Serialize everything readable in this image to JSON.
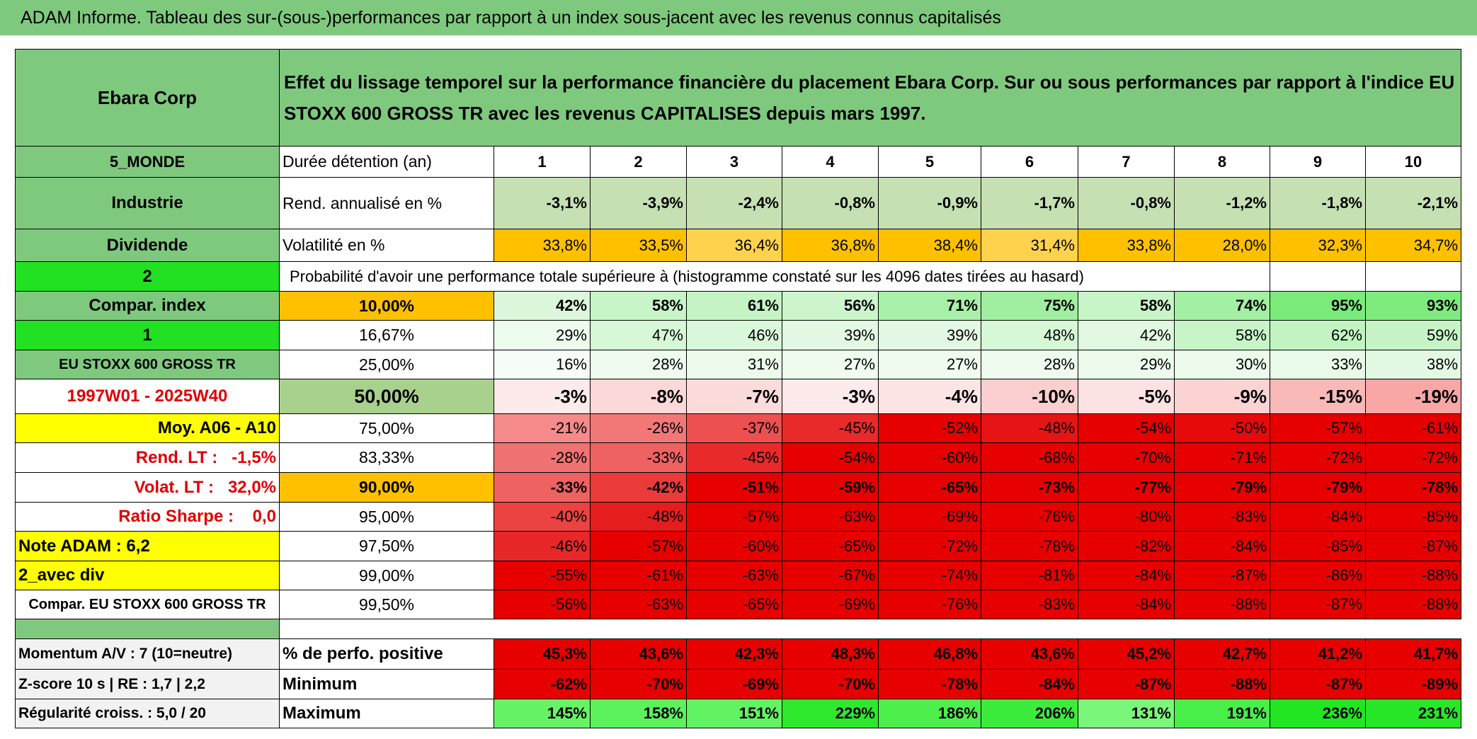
{
  "title": "ADAM Informe. Tableau des sur-(sous-)performances par rapport à un index sous-jacent avec les revenus connus capitalisés",
  "header": {
    "name": "Ebara Corp",
    "description": "Effet du lissage temporel sur la performance financière du placement Ebara Corp. Sur ou sous performances par rapport à l'indice EU STOXX 600 GROSS TR avec les revenus CAPITALISES depuis mars 1997.",
    "bg": "#7fc97f"
  },
  "rows": [
    {
      "label": "5_MONDE",
      "label_bg": "#7fc97f",
      "label_fg": "#000000",
      "key": "Durée détention (an)",
      "key_bg": "#ffffff",
      "cells": [
        "1",
        "2",
        "3",
        "4",
        "5",
        "6",
        "7",
        "8",
        "9",
        "10"
      ],
      "cell_bg": "#ffffff"
    },
    {
      "label": "Industrie",
      "label_bg": "#7fc97f",
      "label_fg": "#000000",
      "key": "Rend. annualisé en %",
      "key_bg": "#ffffff",
      "cells": [
        "-3,1%",
        "-3,9%",
        "-2,4%",
        "-0,8%",
        "-0,9%",
        "-1,7%",
        "-0,8%",
        "-1,2%",
        "-1,8%",
        "-2,1%"
      ],
      "cell_bg": "#c6e0b4"
    },
    {
      "label": "Dividende",
      "label_bg": "#7fc97f",
      "label_fg": "#000000",
      "key": "Volatilité en %",
      "key_bg": "#ffffff",
      "cells": [
        "33,8%",
        "33,5%",
        "36,4%",
        "36,8%",
        "38,4%",
        "31,4%",
        "33,8%",
        "28,0%",
        "32,3%",
        "34,7%"
      ],
      "cell_bg": [
        "#ffc000",
        "#ffc000",
        "#ffd24d",
        "#ffc000",
        "#ffc000",
        "#ffd24d",
        "#ffc000",
        "#ffc000",
        "#ffc000",
        "#ffc000"
      ]
    },
    {
      "label": "2",
      "label_bg": "#22e022",
      "label_fg": "#000000",
      "note": "Probabilité d'avoir une performance totale supérieure à (histogramme constaté sur les 4096 dates tirées au hasard)"
    },
    {
      "label": "Compar. index",
      "label_bg": "#7fc97f",
      "label_fg": "#000000",
      "key": "10,00%",
      "key_bg": "#ffc000",
      "cells": [
        "42%",
        "58%",
        "61%",
        "56%",
        "71%",
        "75%",
        "58%",
        "74%",
        "95%",
        "93%"
      ],
      "cell_bg": [
        "#ddf7dd",
        "#c8f5c8",
        "#c4f4c4",
        "#ccf5cc",
        "#a8f0a8",
        "#a0ee9f",
        "#c8f5c8",
        "#a3efa3",
        "#7aeb7a",
        "#7eeb7e"
      ]
    },
    {
      "label": "1",
      "label_bg": "#22e022",
      "label_fg": "#000000",
      "key": "16,67%",
      "key_bg": "#ffffff",
      "cells": [
        "29%",
        "47%",
        "46%",
        "39%",
        "39%",
        "48%",
        "42%",
        "58%",
        "62%",
        "59%"
      ],
      "cell_bg": [
        "#eefcee",
        "#d7f8d7",
        "#d9f8d9",
        "#e3f9e3",
        "#e3f9e3",
        "#d6f8d6",
        "#e0f9e0",
        "#c8f5c8",
        "#c2f4c2",
        "#c6f4c6"
      ]
    },
    {
      "label": "EU STOXX 600 GROSS TR",
      "label_bg": "#7fc97f",
      "label_fg": "#000000",
      "key": "25,00%",
      "key_bg": "#ffffff",
      "cells": [
        "16%",
        "28%",
        "31%",
        "27%",
        "27%",
        "28%",
        "29%",
        "30%",
        "33%",
        "38%"
      ],
      "cell_bg": [
        "#f6fdf6",
        "#eefbee",
        "#ecfbec",
        "#effcef",
        "#effcef",
        "#eefbee",
        "#edfbed",
        "#ecfbec",
        "#e9fae9",
        "#e4f9e4"
      ]
    },
    {
      "label": "1997W01 - 2025W40",
      "label_bg": "#ffffff",
      "label_fg": "#e00000",
      "key": "50,00%",
      "key_bg": "#a9d18e",
      "cells": [
        "-3%",
        "-8%",
        "-7%",
        "-3%",
        "-4%",
        "-10%",
        "-5%",
        "-9%",
        "-15%",
        "-19%"
      ],
      "cell_bg": [
        "#fdeaea",
        "#fcd8d8",
        "#fcdbdb",
        "#fdeaea",
        "#fde5e5",
        "#fbcfcf",
        "#fce2e2",
        "#fbd3d3",
        "#f9b9b9",
        "#f8a6a6"
      ]
    },
    {
      "label": "Moy. A06 - A10",
      "label_bg": "#ffff00",
      "label_fg": "#000000",
      "key": "75,00%",
      "key_bg": "#ffffff",
      "cells": [
        "-21%",
        "-26%",
        "-37%",
        "-45%",
        "-52%",
        "-48%",
        "-54%",
        "-50%",
        "-57%",
        "-61%"
      ],
      "cell_bg": [
        "#f58a8a",
        "#f27878",
        "#ec5050",
        "#e82a2a",
        "#e60000",
        "#e61414",
        "#e60000",
        "#e60a0a",
        "#e60000",
        "#e60000"
      ]
    },
    {
      "label": "Rend. LT :   -1,5%",
      "label_bg": "#ffffff",
      "label_fg": "#e00000",
      "key": "83,33%",
      "key_bg": "#ffffff",
      "cells": [
        "-28%",
        "-33%",
        "-45%",
        "-54%",
        "-60%",
        "-68%",
        "-70%",
        "-71%",
        "-72%",
        "-72%"
      ],
      "cell_bg": [
        "#f07272",
        "#ee6262",
        "#e82a2a",
        "#e60000",
        "#e60000",
        "#e60000",
        "#e60000",
        "#e60000",
        "#e60000",
        "#e60000"
      ]
    },
    {
      "label": "Volat. LT :   32,0%",
      "label_bg": "#ffffff",
      "label_fg": "#e00000",
      "key": "90,00%",
      "key_bg": "#ffc000",
      "cells": [
        "-33%",
        "-42%",
        "-51%",
        "-59%",
        "-65%",
        "-73%",
        "-77%",
        "-79%",
        "-79%",
        "-78%"
      ],
      "cell_bg": [
        "#ee6262",
        "#ea3a3a",
        "#e60000",
        "#e60000",
        "#e60000",
        "#e60000",
        "#e60000",
        "#e60000",
        "#e60000",
        "#e60000"
      ]
    },
    {
      "label": "Ratio Sharpe :    0,0",
      "label_bg": "#ffffff",
      "label_fg": "#e00000",
      "key": "95,00%",
      "key_bg": "#ffffff",
      "cells": [
        "-40%",
        "-48%",
        "-57%",
        "-63%",
        "-69%",
        "-76%",
        "-80%",
        "-83%",
        "-84%",
        "-85%"
      ],
      "cell_bg": [
        "#eb4242",
        "#e61d1d",
        "#e60000",
        "#e60000",
        "#e60000",
        "#e60000",
        "#e60000",
        "#e60000",
        "#e60000",
        "#e60000"
      ]
    },
    {
      "label": "Note ADAM : 6,2",
      "label_bg": "#ffff00",
      "label_fg": "#000000",
      "key": "97,50%",
      "key_bg": "#ffffff",
      "cells": [
        "-46%",
        "-57%",
        "-60%",
        "-65%",
        "-72%",
        "-78%",
        "-82%",
        "-84%",
        "-85%",
        "-87%"
      ],
      "cell_bg": [
        "#e82828",
        "#e60000",
        "#e60000",
        "#e60000",
        "#e60000",
        "#e60000",
        "#e60000",
        "#e60000",
        "#e60000",
        "#e60000"
      ]
    },
    {
      "label": "2_avec div",
      "label_bg": "#ffff00",
      "label_fg": "#000000",
      "key": "99,00%",
      "key_bg": "#ffffff",
      "cells": [
        "-55%",
        "-61%",
        "-63%",
        "-67%",
        "-74%",
        "-81%",
        "-84%",
        "-87%",
        "-86%",
        "-88%"
      ],
      "cell_bg": "#e60000"
    },
    {
      "label": "Compar. EU STOXX 600 GROSS TR",
      "label_bg": "#ffffff",
      "label_fg": "#000000",
      "key": "99,50%",
      "key_bg": "#ffffff",
      "cells": [
        "-56%",
        "-63%",
        "-65%",
        "-69%",
        "-76%",
        "-83%",
        "-84%",
        "-88%",
        "-87%",
        "-88%"
      ],
      "cell_bg": "#e60000"
    }
  ],
  "spacer_bg": "#7fc97f",
  "footer": [
    {
      "label": "Momentum A/V : 7 (10=neutre)",
      "label_bg": "#f2f2f2",
      "label_fg": "#000000",
      "key": "% de perfo. positive",
      "key_bg": "#ffffff",
      "cells": [
        "45,3%",
        "43,6%",
        "42,3%",
        "48,3%",
        "46,8%",
        "43,6%",
        "45,2%",
        "42,7%",
        "41,2%",
        "41,7%"
      ],
      "cell_bg": "#e60000"
    },
    {
      "label": "Z-score 10 s | RE : 1,7 | 2,2",
      "label_bg": "#f2f2f2",
      "label_fg": "#000000",
      "key": "Minimum",
      "key_bg": "#ffffff",
      "cells": [
        "-62%",
        "-70%",
        "-69%",
        "-70%",
        "-78%",
        "-84%",
        "-87%",
        "-88%",
        "-87%",
        "-89%"
      ],
      "cell_bg": "#e60000"
    },
    {
      "label": "Régularité croiss. : 5,0 / 20",
      "label_bg": "#f2f2f2",
      "label_fg": "#000000",
      "key": "Maximum",
      "key_bg": "#ffffff",
      "cells": [
        "145%",
        "158%",
        "151%",
        "229%",
        "186%",
        "206%",
        "131%",
        "191%",
        "236%",
        "231%"
      ],
      "cell_bg": [
        "#66f466",
        "#5cf25c",
        "#62f362",
        "#2ee82e",
        "#4cef4c",
        "#3cec3c",
        "#7af77a",
        "#48ef48",
        "#22e622",
        "#28e628"
      ]
    }
  ],
  "title_bg": "#7fc97f"
}
